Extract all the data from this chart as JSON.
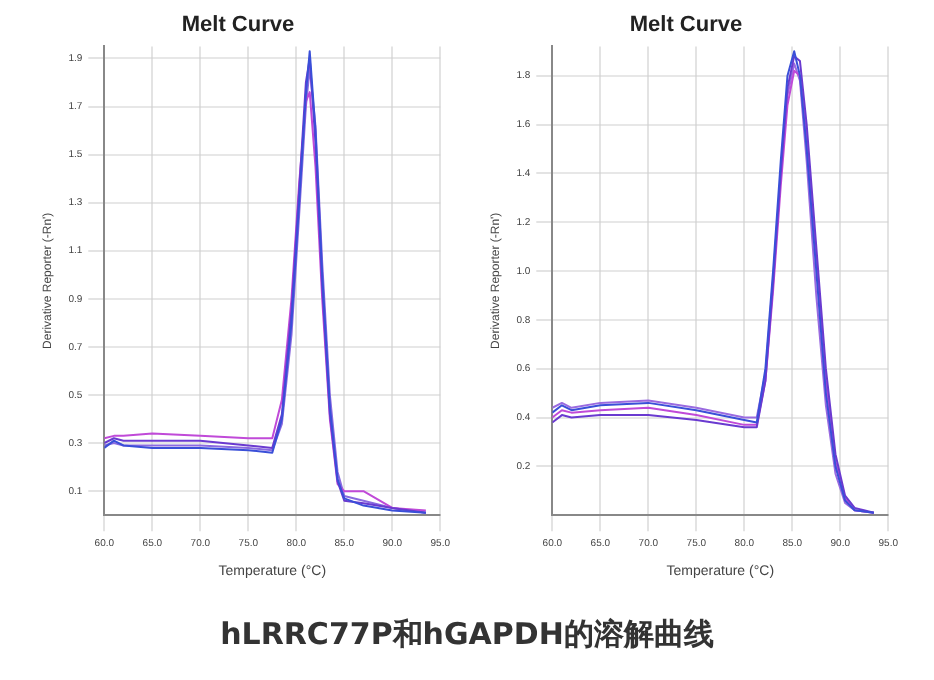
{
  "chart_data": [
    {
      "type": "line",
      "title": "Melt Curve",
      "annotations": [
        "hLRRC77P和hGAPDH的溶解曲线"
      ],
      "xlabel": "Temperature (°C)",
      "ylabel": "Derivative Reporter (-Rn')",
      "xlim": [
        60,
        95
      ],
      "xticks": [
        {
          "value": 60,
          "label": "60.0"
        },
        {
          "value": 65,
          "label": "65.0"
        },
        {
          "value": 70,
          "label": "70.0"
        },
        {
          "value": 75,
          "label": "75.0"
        },
        {
          "value": 80,
          "label": "80.0"
        },
        {
          "value": 85,
          "label": "85.0"
        },
        {
          "value": 90,
          "label": "90.0"
        },
        {
          "value": 95,
          "label": "95.0"
        }
      ],
      "ylim": [
        0,
        1.95
      ],
      "yticks": [
        0.1,
        0.3,
        0.5,
        0.7,
        0.9,
        1.1,
        1.3,
        1.5,
        1.7,
        1.9
      ],
      "grid": true,
      "legend": false,
      "marker": "none",
      "line_style": "solid",
      "x": [
        60,
        61,
        62,
        65,
        70,
        75,
        77.5,
        78.5,
        79.5,
        80.3,
        81,
        81.4,
        82,
        82.7,
        83.5,
        84.3,
        85,
        87,
        90,
        93.5
      ],
      "series": [
        {
          "color": "#3a4fd8",
          "values": [
            0.28,
            0.31,
            0.29,
            0.28,
            0.28,
            0.27,
            0.26,
            0.4,
            0.8,
            1.3,
            1.75,
            1.93,
            1.6,
            1.0,
            0.45,
            0.15,
            0.07,
            0.04,
            0.02,
            0.01
          ]
        },
        {
          "color": "#6a3ad0",
          "values": [
            0.3,
            0.32,
            0.31,
            0.31,
            0.31,
            0.29,
            0.28,
            0.42,
            0.85,
            1.35,
            1.8,
            1.9,
            1.55,
            0.95,
            0.42,
            0.14,
            0.06,
            0.05,
            0.03,
            0.01
          ]
        },
        {
          "color": "#c04ad8",
          "values": [
            0.32,
            0.33,
            0.33,
            0.34,
            0.33,
            0.32,
            0.32,
            0.48,
            0.9,
            1.38,
            1.72,
            1.76,
            1.45,
            0.9,
            0.4,
            0.13,
            0.1,
            0.1,
            0.03,
            0.02
          ]
        },
        {
          "color": "#8a6ae0",
          "values": [
            0.29,
            0.3,
            0.29,
            0.29,
            0.29,
            0.28,
            0.27,
            0.38,
            0.75,
            1.25,
            1.7,
            1.86,
            1.62,
            1.05,
            0.5,
            0.18,
            0.08,
            0.06,
            0.03,
            0.01
          ]
        }
      ]
    },
    {
      "type": "line",
      "title": "Melt Curve",
      "xlabel": "Temperature (°C)",
      "ylabel": "Derivative Reporter (-Rn')",
      "xlim": [
        60,
        95
      ],
      "xticks": [
        {
          "value": 60,
          "label": "60.0"
        },
        {
          "value": 65,
          "label": "65.0"
        },
        {
          "value": 70,
          "label": "70.0"
        },
        {
          "value": 75,
          "label": "75.0"
        },
        {
          "value": 80,
          "label": "80.0"
        },
        {
          "value": 85,
          "label": "85.0"
        },
        {
          "value": 90,
          "label": "90.0"
        },
        {
          "value": 95,
          "label": "95.0"
        }
      ],
      "ylim": [
        0,
        1.92
      ],
      "yticks": [
        0.2,
        0.4,
        0.6,
        0.8,
        {
          "value": 1,
          "label": "1.0"
        },
        1.2,
        1.4,
        1.6,
        1.8
      ],
      "grid": true,
      "legend": false,
      "marker": "none",
      "line_style": "solid",
      "x": [
        60,
        61,
        62,
        65,
        70,
        75,
        80,
        81.3,
        82.2,
        83,
        83.8,
        84.5,
        85.2,
        85.8,
        86.5,
        87.5,
        88.5,
        89.5,
        90.5,
        91.5,
        93.5
      ],
      "series": [
        {
          "color": "#3a4fd8",
          "values": [
            0.42,
            0.45,
            0.43,
            0.45,
            0.46,
            0.43,
            0.39,
            0.38,
            0.6,
            1.0,
            1.45,
            1.8,
            1.9,
            1.8,
            1.5,
            1.0,
            0.5,
            0.2,
            0.06,
            0.02,
            0.01
          ]
        },
        {
          "color": "#6a3ad0",
          "values": [
            0.38,
            0.41,
            0.4,
            0.41,
            0.41,
            0.39,
            0.36,
            0.36,
            0.55,
            0.95,
            1.4,
            1.75,
            1.88,
            1.86,
            1.6,
            1.1,
            0.6,
            0.25,
            0.08,
            0.03,
            0.01
          ]
        },
        {
          "color": "#c04ad8",
          "values": [
            0.4,
            0.43,
            0.42,
            0.43,
            0.44,
            0.41,
            0.37,
            0.37,
            0.55,
            0.92,
            1.35,
            1.68,
            1.82,
            1.8,
            1.55,
            1.05,
            0.55,
            0.22,
            0.07,
            0.02,
            0.01
          ]
        },
        {
          "color": "#9a6ae0",
          "values": [
            0.44,
            0.46,
            0.44,
            0.46,
            0.47,
            0.44,
            0.4,
            0.4,
            0.58,
            0.97,
            1.4,
            1.72,
            1.85,
            1.78,
            1.45,
            0.9,
            0.45,
            0.17,
            0.05,
            0.02,
            0.01
          ]
        }
      ]
    }
  ]
}
